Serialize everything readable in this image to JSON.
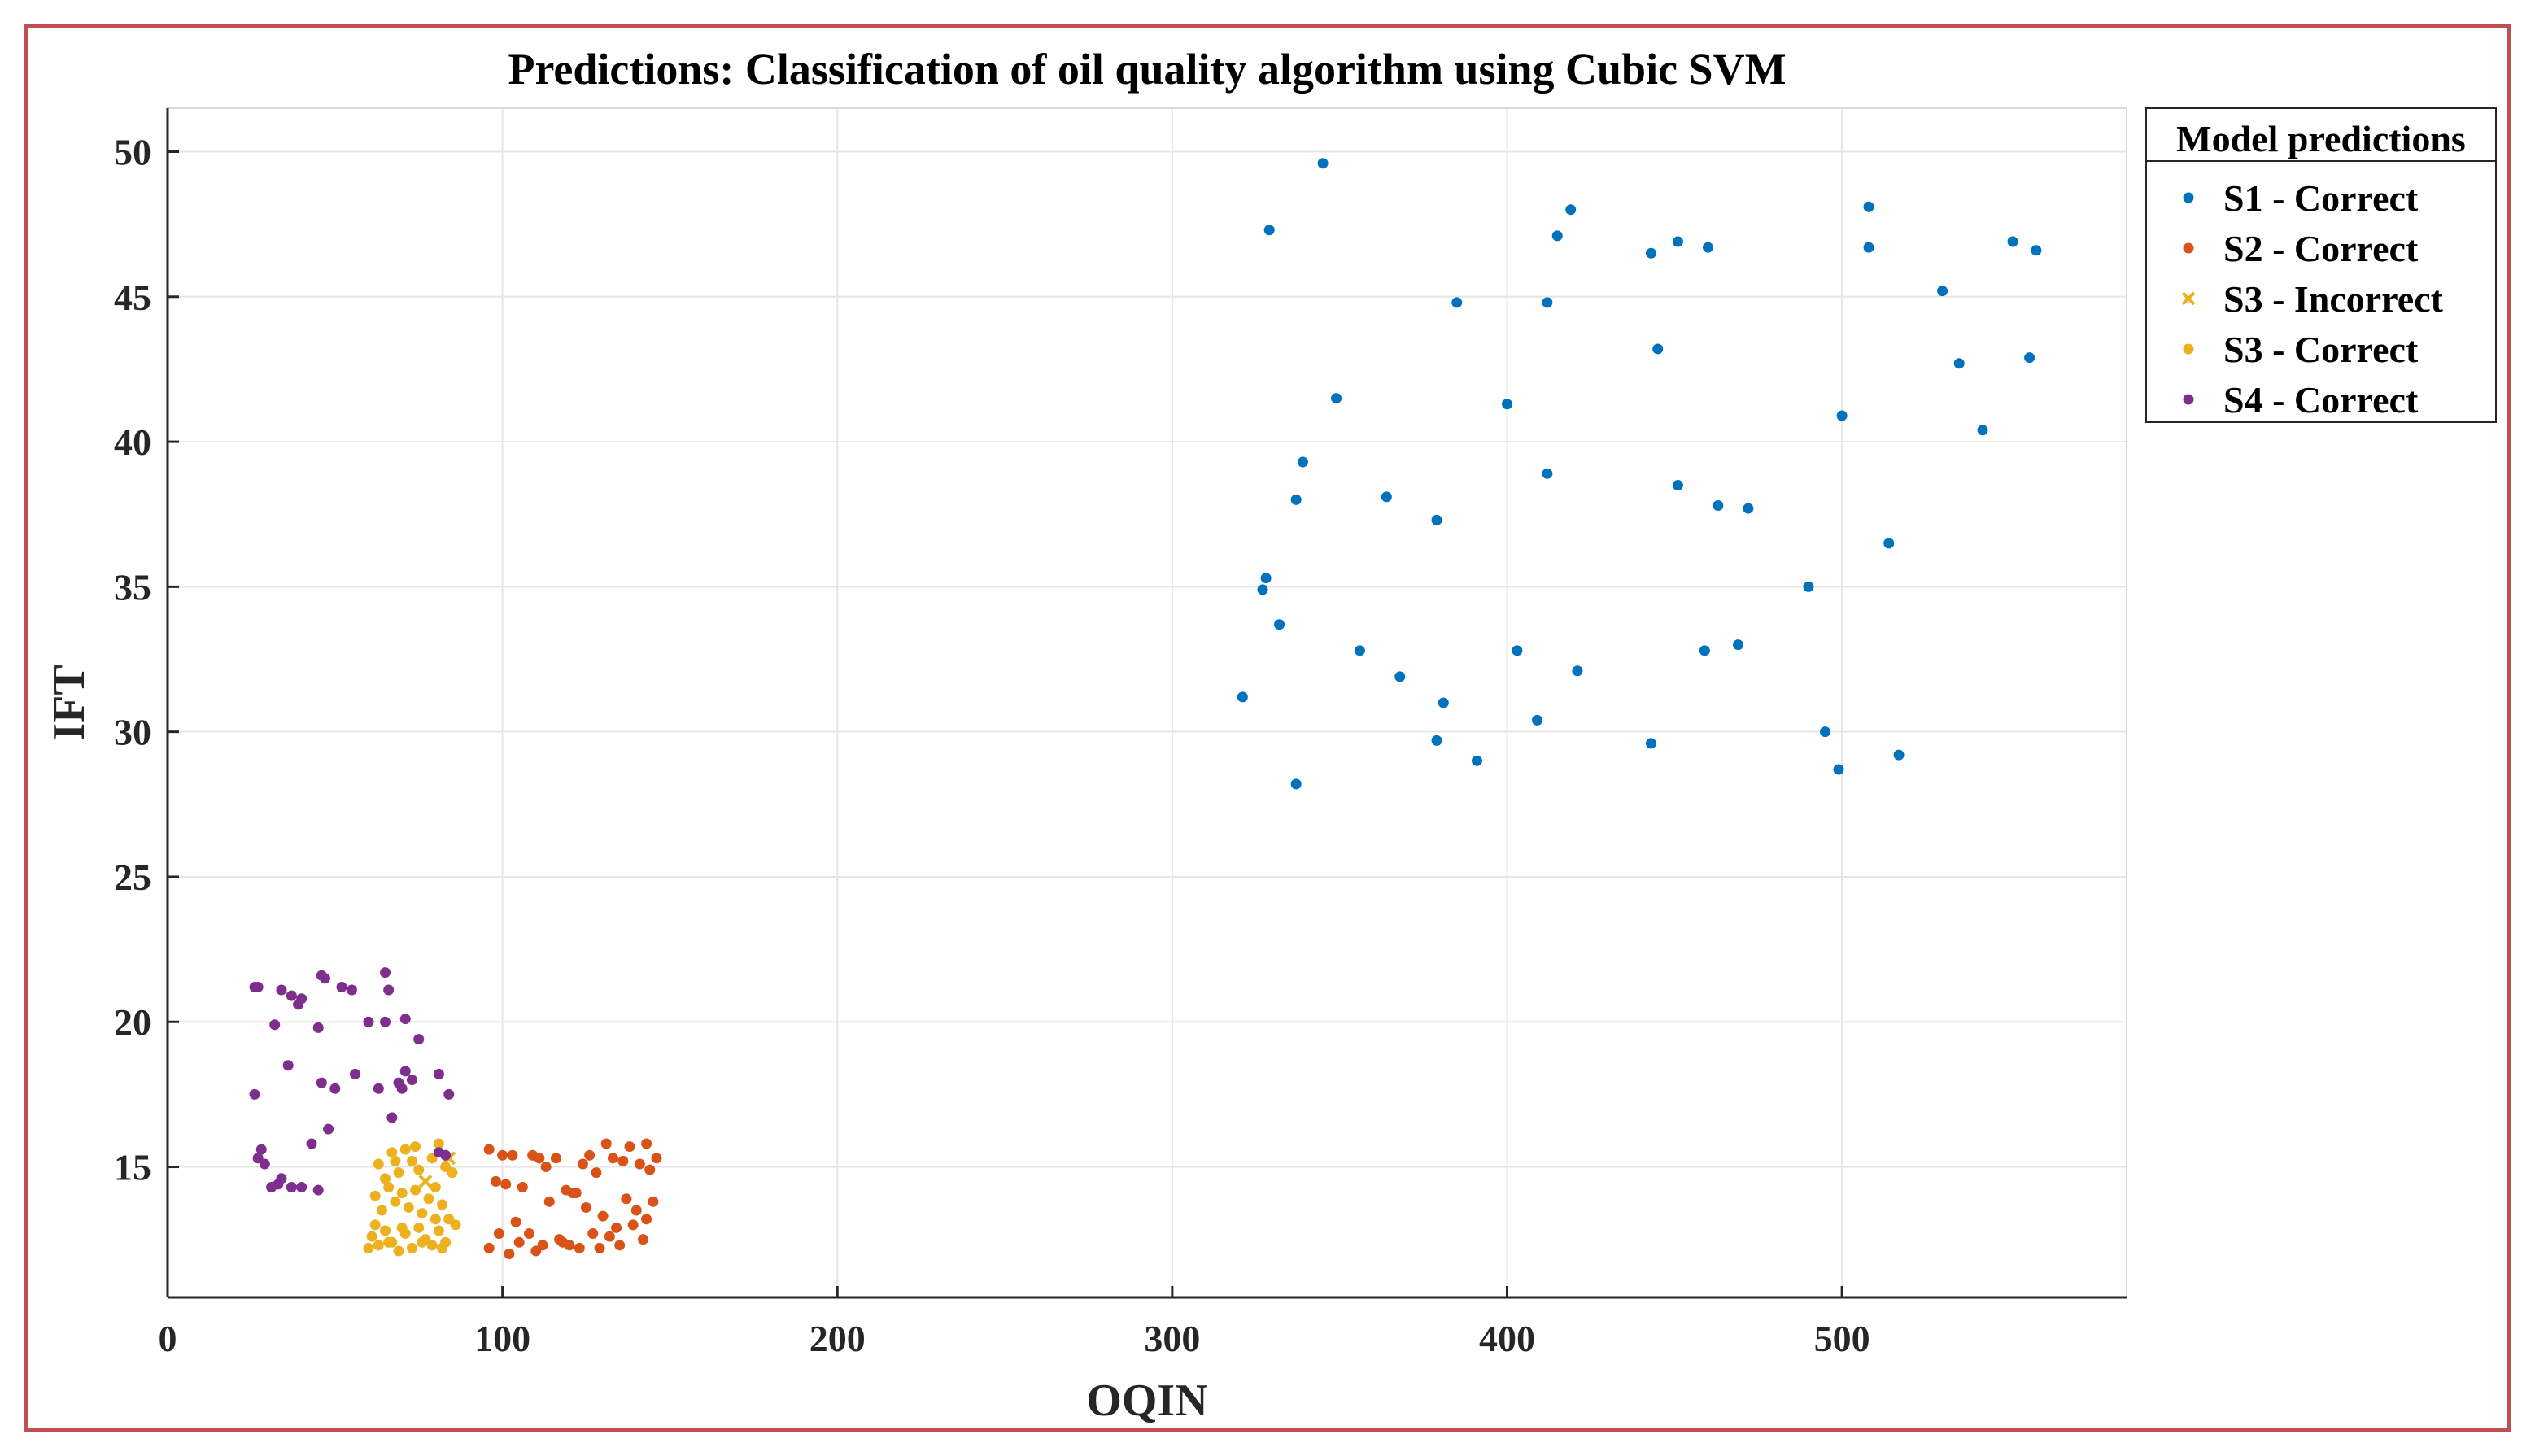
{
  "chart_data": {
    "type": "scatter",
    "title": "Predictions: Classification of oil quality algorithm using Cubic SVM",
    "xlabel": "OQIN",
    "ylabel": "IFT",
    "xlim": [
      0,
      585
    ],
    "ylim": [
      10.5,
      51.5
    ],
    "xticks": [
      0,
      100,
      200,
      300,
      400,
      500
    ],
    "yticks": [
      15,
      20,
      25,
      30,
      35,
      40,
      45,
      50
    ],
    "grid": true,
    "legend": {
      "title": "Model predictions",
      "position": "outside-top-right"
    },
    "series": [
      {
        "name": "S1 - Correct",
        "marker": "dot",
        "color": "#0072bd",
        "points": [
          [
            345,
            49.6
          ],
          [
            329,
            47.3
          ],
          [
            419,
            48.0
          ],
          [
            415,
            47.1
          ],
          [
            451,
            46.9
          ],
          [
            443,
            46.5
          ],
          [
            460,
            46.7
          ],
          [
            508,
            48.1
          ],
          [
            508,
            46.7
          ],
          [
            551,
            46.9
          ],
          [
            558,
            46.6
          ],
          [
            385,
            44.8
          ],
          [
            412,
            44.8
          ],
          [
            530,
            45.2
          ],
          [
            445,
            43.2
          ],
          [
            556,
            42.9
          ],
          [
            535,
            42.7
          ],
          [
            349,
            41.5
          ],
          [
            400,
            41.3
          ],
          [
            500,
            40.9
          ],
          [
            542,
            40.4
          ],
          [
            339,
            39.3
          ],
          [
            412,
            38.9
          ],
          [
            451,
            38.5
          ],
          [
            337,
            38.0
          ],
          [
            364,
            38.1
          ],
          [
            463,
            37.8
          ],
          [
            472,
            37.7
          ],
          [
            379,
            37.3
          ],
          [
            514,
            36.5
          ],
          [
            328,
            35.3
          ],
          [
            327,
            34.9
          ],
          [
            490,
            35.0
          ],
          [
            332,
            33.7
          ],
          [
            356,
            32.8
          ],
          [
            403,
            32.8
          ],
          [
            459,
            32.8
          ],
          [
            469,
            33.0
          ],
          [
            368,
            31.9
          ],
          [
            421,
            32.1
          ],
          [
            321,
            31.2
          ],
          [
            381,
            31.0
          ],
          [
            409,
            30.4
          ],
          [
            379,
            29.7
          ],
          [
            443,
            29.6
          ],
          [
            495,
            30.0
          ],
          [
            391,
            29.0
          ],
          [
            499,
            28.7
          ],
          [
            517,
            29.2
          ],
          [
            337,
            28.2
          ]
        ]
      },
      {
        "name": "S2 - Correct",
        "marker": "dot",
        "color": "#d95319",
        "points": [
          [
            96,
            15.6
          ],
          [
            100,
            15.4
          ],
          [
            103,
            15.4
          ],
          [
            106,
            14.3
          ],
          [
            109,
            15.4
          ],
          [
            111,
            15.3
          ],
          [
            113,
            15.0
          ],
          [
            116,
            15.3
          ],
          [
            119,
            14.2
          ],
          [
            121,
            14.1
          ],
          [
            124,
            15.1
          ],
          [
            126,
            15.4
          ],
          [
            128,
            14.8
          ],
          [
            131,
            15.8
          ],
          [
            133,
            15.3
          ],
          [
            136,
            15.2
          ],
          [
            138,
            15.7
          ],
          [
            141,
            15.1
          ],
          [
            143,
            15.8
          ],
          [
            146,
            15.3
          ],
          [
            144,
            14.9
          ],
          [
            98,
            14.5
          ],
          [
            101,
            14.4
          ],
          [
            104,
            13.1
          ],
          [
            108,
            12.7
          ],
          [
            114,
            13.8
          ],
          [
            117,
            12.5
          ],
          [
            120,
            12.3
          ],
          [
            122,
            14.1
          ],
          [
            125,
            13.6
          ],
          [
            127,
            12.7
          ],
          [
            130,
            13.3
          ],
          [
            134,
            12.9
          ],
          [
            137,
            13.9
          ],
          [
            140,
            13.5
          ],
          [
            143,
            13.2
          ],
          [
            145,
            13.8
          ],
          [
            142,
            12.5
          ],
          [
            139,
            13.0
          ],
          [
            135,
            12.3
          ],
          [
            96,
            12.2
          ],
          [
            99,
            12.7
          ],
          [
            102,
            12.0
          ],
          [
            105,
            12.4
          ],
          [
            110,
            12.1
          ],
          [
            112,
            12.3
          ],
          [
            118,
            12.4
          ],
          [
            123,
            12.2
          ],
          [
            129,
            12.2
          ],
          [
            132,
            12.6
          ]
        ]
      },
      {
        "name": "S3 - Incorrect",
        "marker": "x",
        "color": "#edb120",
        "points": [
          [
            77,
            14.5
          ],
          [
            84,
            15.3
          ]
        ]
      },
      {
        "name": "S3 - Correct",
        "marker": "dot",
        "color": "#edb120",
        "points": [
          [
            63,
            15.1
          ],
          [
            65,
            14.6
          ],
          [
            67,
            15.5
          ],
          [
            69,
            14.8
          ],
          [
            71,
            15.6
          ],
          [
            73,
            15.2
          ],
          [
            75,
            14.9
          ],
          [
            79,
            15.3
          ],
          [
            81,
            15.8
          ],
          [
            83,
            15.0
          ],
          [
            85,
            14.8
          ],
          [
            62,
            14.0
          ],
          [
            64,
            13.5
          ],
          [
            66,
            14.3
          ],
          [
            68,
            13.8
          ],
          [
            70,
            14.1
          ],
          [
            72,
            13.6
          ],
          [
            74,
            14.2
          ],
          [
            76,
            13.4
          ],
          [
            78,
            13.9
          ],
          [
            80,
            14.3
          ],
          [
            82,
            13.7
          ],
          [
            84,
            13.2
          ],
          [
            61,
            12.6
          ],
          [
            63,
            12.3
          ],
          [
            65,
            12.8
          ],
          [
            67,
            12.4
          ],
          [
            69,
            12.1
          ],
          [
            71,
            12.7
          ],
          [
            73,
            12.2
          ],
          [
            75,
            12.9
          ],
          [
            77,
            12.5
          ],
          [
            79,
            12.3
          ],
          [
            81,
            12.8
          ],
          [
            83,
            12.4
          ],
          [
            86,
            13.0
          ],
          [
            60,
            12.2
          ],
          [
            66,
            12.4
          ],
          [
            70,
            12.9
          ],
          [
            76,
            12.4
          ],
          [
            82,
            12.2
          ],
          [
            68,
            15.2
          ],
          [
            74,
            15.7
          ],
          [
            62,
            13.0
          ],
          [
            80,
            13.2
          ]
        ]
      },
      {
        "name": "S4 - Correct",
        "marker": "dot",
        "color": "#7e2f8e",
        "points": [
          [
            26,
            21.2
          ],
          [
            27,
            21.2
          ],
          [
            34,
            21.1
          ],
          [
            37,
            20.9
          ],
          [
            39,
            20.6
          ],
          [
            40,
            20.8
          ],
          [
            46,
            21.6
          ],
          [
            47,
            21.5
          ],
          [
            52,
            21.2
          ],
          [
            55,
            21.1
          ],
          [
            65,
            21.7
          ],
          [
            66,
            21.1
          ],
          [
            32,
            19.9
          ],
          [
            45,
            19.8
          ],
          [
            60,
            20.0
          ],
          [
            65,
            20.0
          ],
          [
            71,
            20.1
          ],
          [
            75,
            19.4
          ],
          [
            36,
            18.5
          ],
          [
            46,
            17.9
          ],
          [
            50,
            17.7
          ],
          [
            56,
            18.2
          ],
          [
            63,
            17.7
          ],
          [
            69,
            17.9
          ],
          [
            70,
            17.7
          ],
          [
            71,
            18.3
          ],
          [
            73,
            18.0
          ],
          [
            81,
            18.2
          ],
          [
            84,
            17.5
          ],
          [
            26,
            17.5
          ],
          [
            67,
            16.7
          ],
          [
            48,
            16.3
          ],
          [
            43,
            15.8
          ],
          [
            27,
            15.3
          ],
          [
            28,
            15.6
          ],
          [
            29,
            15.1
          ],
          [
            31,
            14.3
          ],
          [
            33,
            14.4
          ],
          [
            34,
            14.6
          ],
          [
            37,
            14.3
          ],
          [
            40,
            14.3
          ],
          [
            45,
            14.2
          ],
          [
            81,
            15.5
          ],
          [
            83,
            15.4
          ]
        ]
      }
    ]
  }
}
